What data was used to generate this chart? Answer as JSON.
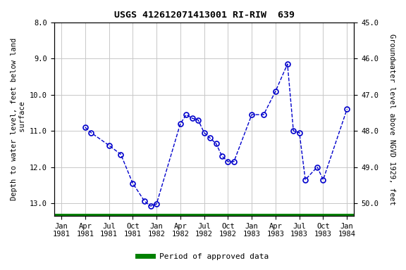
{
  "title": "USGS 412612071413001 RI-RIW  639",
  "ylabel_left": "Depth to water level, feet below land\n surface",
  "ylabel_right": "Groundwater level above NGVD 1929, feet",
  "xlabel_ticks": [
    "Jan\n1981",
    "Apr\n1981",
    "Jul\n1981",
    "Oct\n1981",
    "Jan\n1982",
    "Apr\n1982",
    "Jul\n1982",
    "Oct\n1982",
    "Jan\n1983",
    "Apr\n1983",
    "Jul\n1983",
    "Oct\n1983",
    "Jan\n1984"
  ],
  "ylim_left": [
    8.0,
    13.35
  ],
  "ylim_right": [
    50.35,
    45.0
  ],
  "yticks_left": [
    8.0,
    9.0,
    10.0,
    11.0,
    12.0,
    13.0
  ],
  "yticks_right": [
    50.0,
    49.0,
    48.0,
    47.0,
    46.0,
    45.0
  ],
  "data_points": [
    [
      1.0,
      10.9
    ],
    [
      1.25,
      11.05
    ],
    [
      2.0,
      11.4
    ],
    [
      2.5,
      11.65
    ],
    [
      3.0,
      12.45
    ],
    [
      3.5,
      12.95
    ],
    [
      3.75,
      13.08
    ],
    [
      4.0,
      13.02
    ],
    [
      5.0,
      10.8
    ],
    [
      5.25,
      10.55
    ],
    [
      5.5,
      10.65
    ],
    [
      5.75,
      10.7
    ],
    [
      6.0,
      11.05
    ],
    [
      6.25,
      11.2
    ],
    [
      6.5,
      11.35
    ],
    [
      6.75,
      11.7
    ],
    [
      7.0,
      11.85
    ],
    [
      7.25,
      11.85
    ],
    [
      8.0,
      10.55
    ],
    [
      8.5,
      10.55
    ],
    [
      9.0,
      9.9
    ],
    [
      9.5,
      9.15
    ],
    [
      9.75,
      11.0
    ],
    [
      10.0,
      11.05
    ],
    [
      10.25,
      12.35
    ],
    [
      10.75,
      12.0
    ],
    [
      11.0,
      12.35
    ],
    [
      12.0,
      10.4
    ]
  ],
  "line_color": "#0000cc",
  "marker_color": "#0000cc",
  "legend_label": "Period of approved data",
  "legend_color": "#008000",
  "background_color": "#ffffff",
  "grid_color": "#c8c8c8"
}
